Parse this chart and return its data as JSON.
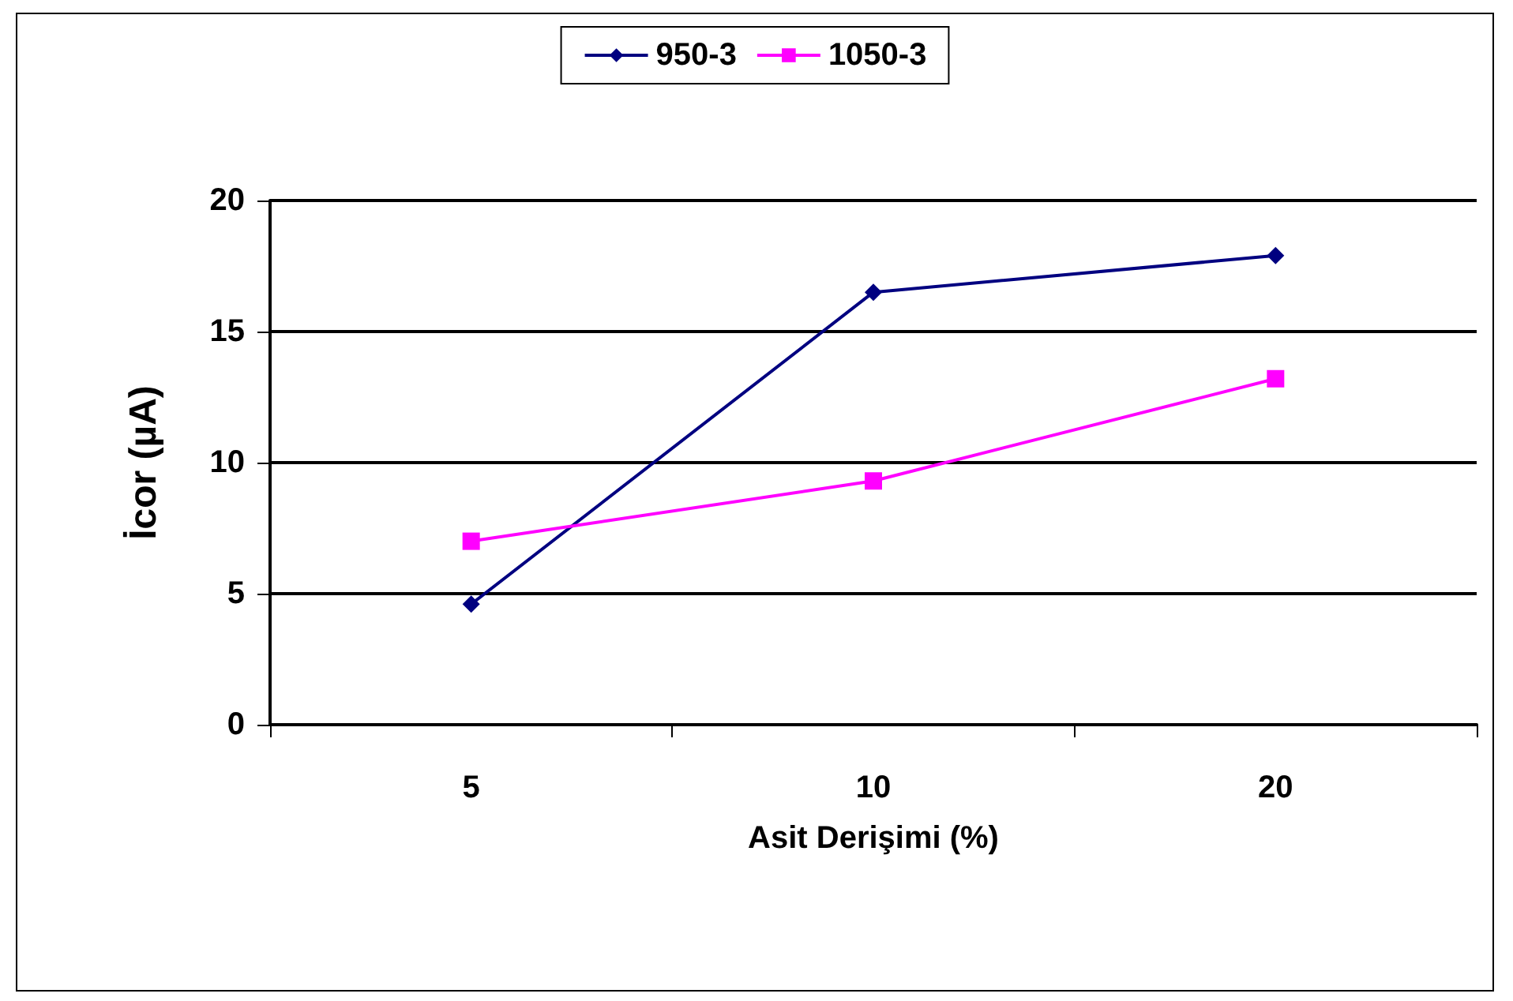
{
  "chart_data": {
    "type": "line",
    "xlabel": "Asit Derişimi (%)",
    "ylabel": "İcor (µA)",
    "categories": [
      "5",
      "10",
      "20"
    ],
    "series": [
      {
        "name": "950-3",
        "color": "#000080",
        "marker": "diamond",
        "values": [
          4.6,
          16.5,
          17.9
        ]
      },
      {
        "name": "1050-3",
        "color": "#ff00ff",
        "marker": "square",
        "values": [
          7.0,
          9.3,
          13.2
        ]
      }
    ],
    "ylim": [
      0,
      20
    ],
    "yticks": [
      0,
      5,
      10,
      15,
      20
    ],
    "grid": "y",
    "legend": "top"
  }
}
